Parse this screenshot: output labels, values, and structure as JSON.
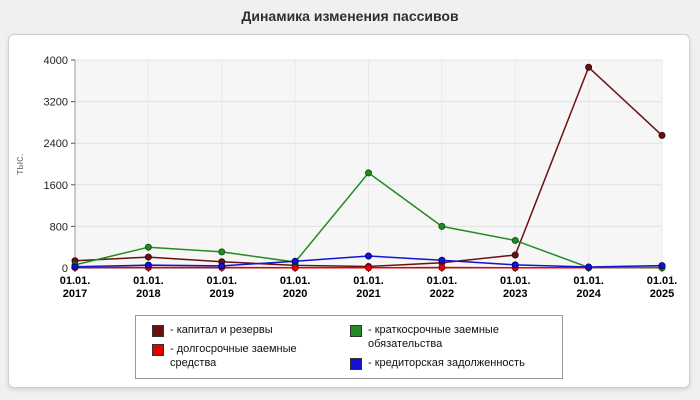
{
  "page": {
    "title": "Динамика изменения пассивов"
  },
  "chart_data": {
    "type": "line",
    "title": "Динамика изменения пассивов",
    "xlabel": "",
    "ylabel": "тыс.",
    "ylim": [
      0,
      4000
    ],
    "yticks": [
      0,
      800,
      1600,
      2400,
      3200,
      4000
    ],
    "grid": true,
    "legend_position": "bottom",
    "categories": [
      "01.01.2017",
      "01.01.2018",
      "01.01.2019",
      "01.01.2020",
      "01.01.2021",
      "01.01.2022",
      "01.01.2023",
      "01.01.2024",
      "01.01.2025"
    ],
    "series": [
      {
        "name": "капитал и резервы",
        "color": "#6b1010",
        "marker_stroke": "#3f0808",
        "values": [
          140,
          210,
          120,
          50,
          30,
          100,
          250,
          3860,
          2550
        ]
      },
      {
        "name": "долгосрочные заемные средства",
        "color": "#e60000",
        "marker_stroke": "#8b0000",
        "values": [
          10,
          10,
          10,
          5,
          5,
          10,
          5,
          5,
          5
        ]
      },
      {
        "name": "краткосрочные заемные обязательства",
        "color": "#228b22",
        "marker_stroke": "#0f5a0f",
        "values": [
          60,
          400,
          310,
          115,
          1830,
          800,
          530,
          10,
          10
        ]
      },
      {
        "name": "кредиторская задолженность",
        "color": "#1212d6",
        "marker_stroke": "#00007a",
        "values": [
          25,
          55,
          40,
          130,
          230,
          150,
          60,
          20,
          45
        ]
      }
    ]
  },
  "legend": {
    "items": [
      {
        "label": "- капитал и резервы"
      },
      {
        "label": "- долгосрочные заемные средства"
      },
      {
        "label": "- краткосрочные заемные обязательства"
      },
      {
        "label": "- кредиторская задолженность"
      }
    ]
  }
}
